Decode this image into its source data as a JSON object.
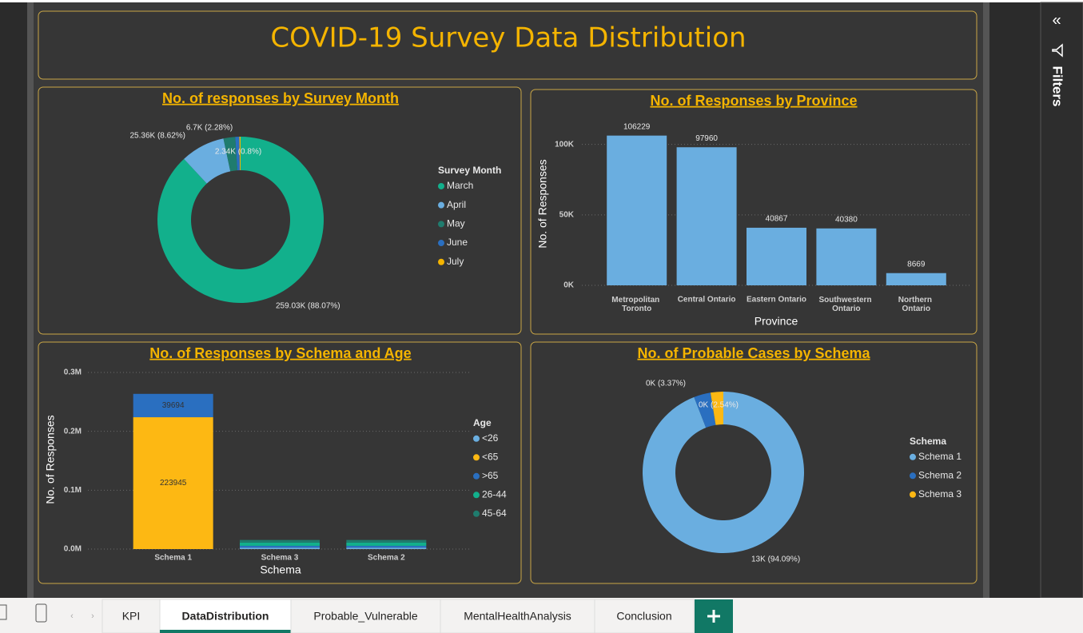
{
  "header": {
    "title": "COVID-19 Survey Data Distribution"
  },
  "chart_data": [
    {
      "type": "donut",
      "title": "No. of responses by Survey Month",
      "legend_title": "Survey Month",
      "categories": [
        "March",
        "April",
        "May",
        "June",
        "July"
      ],
      "values": [
        88.07,
        8.62,
        2.28,
        0.8,
        0.23
      ],
      "value_labels": [
        "259.03K (88.07%)",
        "25.36K (8.62%)",
        "6.7K (2.28%)",
        "2.34K (0.8%)",
        null
      ],
      "colors": [
        "#12b08c",
        "#6aaee0",
        "#1f7c6e",
        "#2a6fc0",
        "#f4b400"
      ],
      "legend": "right"
    },
    {
      "type": "bar",
      "title": "No. of Responses by Province",
      "x_label": "Province",
      "y_label": "No. of Responses",
      "categories": [
        "Metropolitan Toronto",
        "Central Ontario",
        "Eastern Ontario",
        "Southwestern Ontario",
        "Northern Ontario"
      ],
      "values": [
        106229,
        97960,
        40867,
        40380,
        8669
      ],
      "color": "#6aaee0",
      "ylim": [
        0,
        110000
      ],
      "yticks": [
        {
          "value": 0,
          "label": "0K"
        },
        {
          "value": 50000,
          "label": "50K"
        },
        {
          "value": 100000,
          "label": "100K"
        }
      ],
      "grid": true
    },
    {
      "type": "stacked_bar",
      "title": "No. of Responses by Schema and Age",
      "x_label": "Schema",
      "y_label": "No. of Responses",
      "legend_title": "Age",
      "categories": [
        "Schema 1",
        "Schema 3",
        "Schema 2"
      ],
      "series": [
        {
          "name": "<26",
          "color": "#6aaee0",
          "values": [
            0,
            2500,
            2500
          ]
        },
        {
          "name": "<65",
          "color": "#fdb813",
          "values": [
            223945,
            0,
            0
          ]
        },
        {
          "name": ">65",
          "color": "#2a6fc0",
          "values": [
            39694,
            3000,
            3000
          ]
        },
        {
          "name": "26-44",
          "color": "#12b08c",
          "values": [
            0,
            5500,
            5500
          ]
        },
        {
          "name": "45-64",
          "color": "#1f7c6e",
          "values": [
            0,
            4500,
            4500
          ]
        }
      ],
      "ylim": [
        0,
        300000
      ],
      "yticks": [
        {
          "value": 0,
          "label": "0.0M"
        },
        {
          "value": 100000,
          "label": "0.1M"
        },
        {
          "value": 200000,
          "label": "0.2M"
        },
        {
          "value": 300000,
          "label": "0.3M"
        }
      ],
      "grid": true,
      "legend": "right"
    },
    {
      "type": "donut",
      "title": "No. of Probable Cases by Schema",
      "legend_title": "Schema",
      "categories": [
        "Schema 1",
        "Schema 2",
        "Schema 3"
      ],
      "values": [
        94.09,
        3.37,
        2.54
      ],
      "value_labels": [
        "13K (94.09%)",
        "0K (3.37%)",
        "0K (2.54%)"
      ],
      "colors": [
        "#6aaee0",
        "#2a6fc0",
        "#fdb813"
      ],
      "legend": "right"
    }
  ],
  "filters_pane": {
    "title": "Filters"
  },
  "tabs": {
    "items": [
      "KPI",
      "DataDistribution",
      "Probable_Vulnerable",
      "MentalHealthAnalysis",
      "Conclusion"
    ],
    "active": 1
  }
}
